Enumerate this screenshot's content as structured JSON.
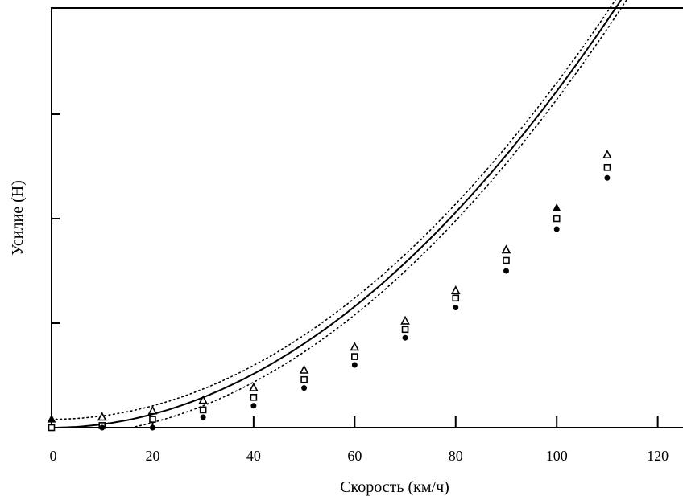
{
  "chart_data": {
    "type": "line",
    "title": "",
    "xlabel": "Скорость (км/ч)",
    "ylabel": "Усилие (Н)",
    "xlim": [
      0,
      125
    ],
    "ylim": [
      0,
      400
    ],
    "x_ticks": [
      0,
      20,
      40,
      60,
      80,
      100,
      120
    ],
    "y_ticks": [
      100,
      200,
      300
    ],
    "y_tick_labels_shown": false,
    "grid": false,
    "legend": "none",
    "curve_coefficients": {
      "main": {
        "a": 0,
        "b": 0.0322
      },
      "upper": {
        "a": 8,
        "b": 0.0322
      },
      "lower": {
        "a": -8,
        "b": 0.0322
      }
    },
    "series": [
      {
        "marker": "triangle-open",
        "x": [
          0,
          10,
          20,
          30,
          40,
          50,
          60,
          70,
          80,
          90,
          100,
          110
        ],
        "y": [
          8,
          10,
          16,
          26,
          38,
          55,
          77,
          102,
          131,
          170,
          210,
          261
        ]
      },
      {
        "marker": "square-open",
        "x": [
          0,
          10,
          20,
          30,
          40,
          50,
          60,
          70,
          80,
          90,
          100,
          110
        ],
        "y": [
          0,
          2,
          8,
          17,
          29,
          46,
          68,
          94,
          124,
          160,
          200,
          249
        ]
      },
      {
        "marker": "circle-filled",
        "x": [
          10,
          20,
          30,
          40,
          50,
          60,
          70,
          80,
          90,
          100,
          110
        ],
        "y": [
          0,
          0,
          10,
          21,
          38,
          60,
          86,
          115,
          150,
          190,
          239
        ]
      }
    ]
  }
}
